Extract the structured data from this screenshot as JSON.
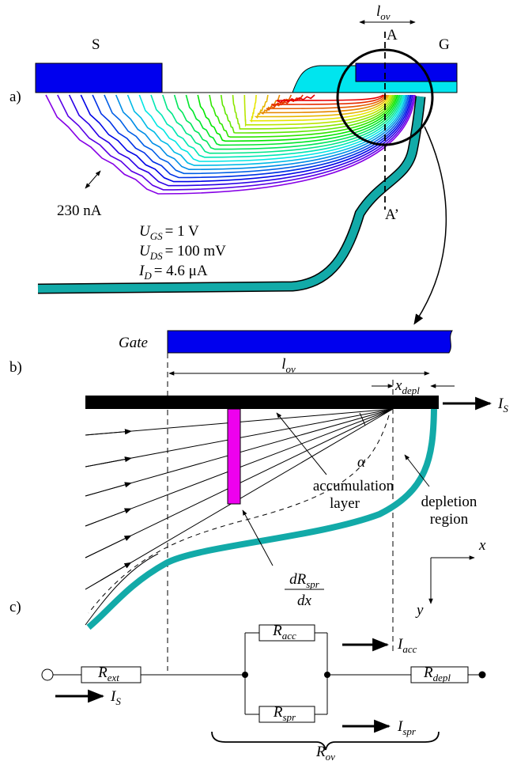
{
  "panel_a": {
    "label": "a)",
    "source": "S",
    "gate": "G",
    "overlap_length": {
      "symbol": "l",
      "subscript": "ov"
    },
    "cut_start": "A",
    "cut_end": "A’",
    "contour_step": "230 nA",
    "conditions": [
      {
        "symbol": "U",
        "subscript": "GS",
        "value": "= 1 V"
      },
      {
        "symbol": "U",
        "subscript": "DS",
        "value": "= 100 mV"
      },
      {
        "symbol": "I",
        "subscript": "D",
        "value": "= 4.6 μA"
      }
    ]
  },
  "panel_b": {
    "label": "b)",
    "gate": "Gate",
    "overlap_length": {
      "symbol": "l",
      "subscript": "ov"
    },
    "depletion_width": {
      "symbol": "x",
      "subscript": "depl"
    },
    "source_current": {
      "symbol": "I",
      "subscript": "S"
    },
    "angle": "α",
    "accumulation_layer": [
      "accumulation",
      "layer"
    ],
    "depletion_region": [
      "depletion",
      "region"
    ],
    "spreading_resistance": {
      "numerator": {
        "symbol": "dR",
        "subscript": "spr"
      },
      "denominator": "dx"
    },
    "axis_x": "x",
    "axis_y": "y"
  },
  "panel_c": {
    "label": "c)",
    "resistors": {
      "external": {
        "symbol": "R",
        "subscript": "ext"
      },
      "accumulation": {
        "symbol": "R",
        "subscript": "acc"
      },
      "spreading": {
        "symbol": "R",
        "subscript": "spr"
      },
      "depletion": {
        "symbol": "R",
        "subscript": "depl"
      }
    },
    "currents": {
      "source": {
        "symbol": "I",
        "subscript": "S"
      },
      "accumulation": {
        "symbol": "I",
        "subscript": "acc"
      },
      "spreading": {
        "symbol": "I",
        "subscript": "spr"
      }
    },
    "overlap_resistance": {
      "symbol": "R",
      "subscript": "ov"
    }
  }
}
